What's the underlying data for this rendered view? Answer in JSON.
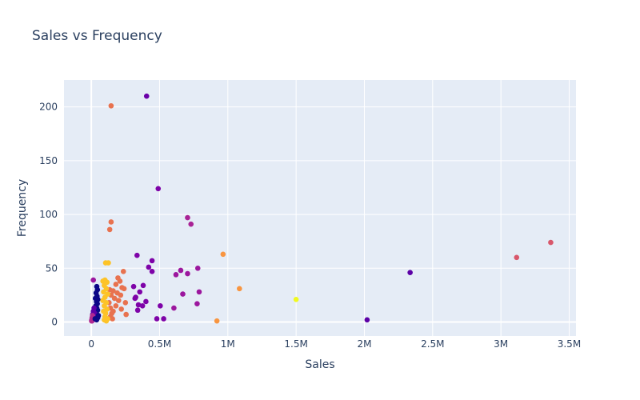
{
  "chart_data": {
    "type": "scatter",
    "title": "Sales vs Frequency",
    "xlabel": "Sales",
    "ylabel": "Frequency",
    "xlim": [
      -200000,
      3550000
    ],
    "ylim": [
      -13,
      225
    ],
    "x_ticks": [
      {
        "value": 0,
        "label": "0"
      },
      {
        "value": 500000,
        "label": "0.5M"
      },
      {
        "value": 1000000,
        "label": "1M"
      },
      {
        "value": 1500000,
        "label": "1.5M"
      },
      {
        "value": 2000000,
        "label": "2M"
      },
      {
        "value": 2500000,
        "label": "2.5M"
      },
      {
        "value": 3000000,
        "label": "3M"
      },
      {
        "value": 3500000,
        "label": "3.5M"
      }
    ],
    "y_ticks": [
      {
        "value": 0,
        "label": "0"
      },
      {
        "value": 50,
        "label": "50"
      },
      {
        "value": 100,
        "label": "100"
      },
      {
        "value": 150,
        "label": "150"
      },
      {
        "value": 200,
        "label": "200"
      }
    ],
    "grid": true,
    "legend": "none",
    "colors": {
      "plot_bg": "#e5ecf6",
      "grid": "#ffffff",
      "text": "#2a3f5f"
    },
    "points": [
      {
        "x": 145000,
        "y": 201,
        "color": "#e8724f"
      },
      {
        "x": 405000,
        "y": 210,
        "color": "#6a00a8"
      },
      {
        "x": 490000,
        "y": 124,
        "color": "#7e03a8"
      },
      {
        "x": 705000,
        "y": 97,
        "color": "#a92395"
      },
      {
        "x": 730000,
        "y": 91,
        "color": "#a92395"
      },
      {
        "x": 145000,
        "y": 93,
        "color": "#e8724f"
      },
      {
        "x": 135000,
        "y": 86,
        "color": "#e8724f"
      },
      {
        "x": 335000,
        "y": 62,
        "color": "#7e03a8"
      },
      {
        "x": 445000,
        "y": 57,
        "color": "#7e03a8"
      },
      {
        "x": 420000,
        "y": 51,
        "color": "#7e03a8"
      },
      {
        "x": 445000,
        "y": 47,
        "color": "#7e03a8"
      },
      {
        "x": 655000,
        "y": 48,
        "color": "#9c179e"
      },
      {
        "x": 620000,
        "y": 44,
        "color": "#9c179e"
      },
      {
        "x": 705000,
        "y": 45,
        "color": "#9c179e"
      },
      {
        "x": 780000,
        "y": 50,
        "color": "#9c179e"
      },
      {
        "x": 965000,
        "y": 63,
        "color": "#f89540"
      },
      {
        "x": 1085000,
        "y": 31,
        "color": "#f89540"
      },
      {
        "x": 1500000,
        "y": 21,
        "color": "#f0f921"
      },
      {
        "x": 920000,
        "y": 1,
        "color": "#f89540"
      },
      {
        "x": 2020000,
        "y": 2,
        "color": "#5c01a6"
      },
      {
        "x": 2335000,
        "y": 46,
        "color": "#5c01a6"
      },
      {
        "x": 3115000,
        "y": 60,
        "color": "#d8576b"
      },
      {
        "x": 3365000,
        "y": 74,
        "color": "#d8576b"
      },
      {
        "x": 310000,
        "y": 33,
        "color": "#7e03a8"
      },
      {
        "x": 380000,
        "y": 34,
        "color": "#7e03a8"
      },
      {
        "x": 355000,
        "y": 28,
        "color": "#7e03a8"
      },
      {
        "x": 320000,
        "y": 22,
        "color": "#7e03a8"
      },
      {
        "x": 325000,
        "y": 23,
        "color": "#7e03a8"
      },
      {
        "x": 400000,
        "y": 19,
        "color": "#7e03a8"
      },
      {
        "x": 345000,
        "y": 16,
        "color": "#7e03a8"
      },
      {
        "x": 375000,
        "y": 15,
        "color": "#7e03a8"
      },
      {
        "x": 340000,
        "y": 11,
        "color": "#7e03a8"
      },
      {
        "x": 505000,
        "y": 15,
        "color": "#7e03a8"
      },
      {
        "x": 480000,
        "y": 3,
        "color": "#7e03a8"
      },
      {
        "x": 530000,
        "y": 3,
        "color": "#7e03a8"
      },
      {
        "x": 605000,
        "y": 13,
        "color": "#9c179e"
      },
      {
        "x": 670000,
        "y": 26,
        "color": "#9c179e"
      },
      {
        "x": 790000,
        "y": 28,
        "color": "#9c179e"
      },
      {
        "x": 775000,
        "y": 17,
        "color": "#9c179e"
      },
      {
        "x": 105000,
        "y": 55,
        "color": "#fdc328"
      },
      {
        "x": 125000,
        "y": 55,
        "color": "#fdc328"
      },
      {
        "x": 235000,
        "y": 47,
        "color": "#e8724f"
      },
      {
        "x": 195000,
        "y": 41,
        "color": "#e8724f"
      },
      {
        "x": 210000,
        "y": 38,
        "color": "#e8724f"
      },
      {
        "x": 180000,
        "y": 35,
        "color": "#e8724f"
      },
      {
        "x": 225000,
        "y": 32,
        "color": "#e8724f"
      },
      {
        "x": 240000,
        "y": 31,
        "color": "#e8724f"
      },
      {
        "x": 160000,
        "y": 29,
        "color": "#e8724f"
      },
      {
        "x": 190000,
        "y": 27,
        "color": "#e8724f"
      },
      {
        "x": 215000,
        "y": 25,
        "color": "#e8724f"
      },
      {
        "x": 170000,
        "y": 22,
        "color": "#e8724f"
      },
      {
        "x": 200000,
        "y": 20,
        "color": "#e8724f"
      },
      {
        "x": 250000,
        "y": 18,
        "color": "#e8724f"
      },
      {
        "x": 180000,
        "y": 15,
        "color": "#e8724f"
      },
      {
        "x": 220000,
        "y": 12,
        "color": "#e8724f"
      },
      {
        "x": 160000,
        "y": 10,
        "color": "#e8724f"
      },
      {
        "x": 150000,
        "y": 8,
        "color": "#e8724f"
      },
      {
        "x": 255000,
        "y": 7,
        "color": "#e8724f"
      },
      {
        "x": 140000,
        "y": 5,
        "color": "#e8724f"
      },
      {
        "x": 155000,
        "y": 3,
        "color": "#e8724f"
      },
      {
        "x": 135000,
        "y": 30,
        "color": "#e8724f"
      },
      {
        "x": 145000,
        "y": 25,
        "color": "#e8724f"
      },
      {
        "x": 130000,
        "y": 18,
        "color": "#e8724f"
      },
      {
        "x": 140000,
        "y": 13,
        "color": "#e8724f"
      },
      {
        "x": 85000,
        "y": 38,
        "color": "#fdc328"
      },
      {
        "x": 100000,
        "y": 39,
        "color": "#fdc328"
      },
      {
        "x": 115000,
        "y": 37,
        "color": "#fdc328"
      },
      {
        "x": 95000,
        "y": 34,
        "color": "#fdc328"
      },
      {
        "x": 110000,
        "y": 31,
        "color": "#fdc328"
      },
      {
        "x": 90000,
        "y": 28,
        "color": "#fdc328"
      },
      {
        "x": 120000,
        "y": 26,
        "color": "#fdc328"
      },
      {
        "x": 100000,
        "y": 23,
        "color": "#fdc328"
      },
      {
        "x": 85000,
        "y": 20,
        "color": "#fdc328"
      },
      {
        "x": 110000,
        "y": 18,
        "color": "#fdc328"
      },
      {
        "x": 95000,
        "y": 15,
        "color": "#fdc328"
      },
      {
        "x": 115000,
        "y": 12,
        "color": "#fdc328"
      },
      {
        "x": 90000,
        "y": 10,
        "color": "#fdc328"
      },
      {
        "x": 105000,
        "y": 8,
        "color": "#fdc328"
      },
      {
        "x": 100000,
        "y": 5,
        "color": "#fdc328"
      },
      {
        "x": 120000,
        "y": 3,
        "color": "#fdc328"
      },
      {
        "x": 95000,
        "y": 2,
        "color": "#fdc328"
      },
      {
        "x": 110000,
        "y": 1,
        "color": "#fdc328"
      },
      {
        "x": 40000,
        "y": 33,
        "color": "#0d0887"
      },
      {
        "x": 45000,
        "y": 30,
        "color": "#0d0887"
      },
      {
        "x": 35000,
        "y": 27,
        "color": "#0d0887"
      },
      {
        "x": 42000,
        "y": 24,
        "color": "#0d0887"
      },
      {
        "x": 30000,
        "y": 22,
        "color": "#0d0887"
      },
      {
        "x": 48000,
        "y": 21,
        "color": "#0d0887"
      },
      {
        "x": 38000,
        "y": 19,
        "color": "#0d0887"
      },
      {
        "x": 44000,
        "y": 17,
        "color": "#0d0887"
      },
      {
        "x": 33000,
        "y": 15,
        "color": "#0d0887"
      },
      {
        "x": 40000,
        "y": 13,
        "color": "#0d0887"
      },
      {
        "x": 46000,
        "y": 11,
        "color": "#0d0887"
      },
      {
        "x": 36000,
        "y": 9,
        "color": "#0d0887"
      },
      {
        "x": 41000,
        "y": 7,
        "color": "#0d0887"
      },
      {
        "x": 30000,
        "y": 5,
        "color": "#0d0887"
      },
      {
        "x": 47000,
        "y": 4,
        "color": "#0d0887"
      },
      {
        "x": 39000,
        "y": 2,
        "color": "#0d0887"
      },
      {
        "x": 20000,
        "y": 13,
        "color": "#5c01a6"
      },
      {
        "x": 15000,
        "y": 10,
        "color": "#5c01a6"
      },
      {
        "x": 25000,
        "y": 8,
        "color": "#5c01a6"
      },
      {
        "x": 10000,
        "y": 7,
        "color": "#5c01a6"
      },
      {
        "x": 22000,
        "y": 5,
        "color": "#5c01a6"
      },
      {
        "x": 18000,
        "y": 4,
        "color": "#5c01a6"
      },
      {
        "x": 8000,
        "y": 3,
        "color": "#9c179e"
      },
      {
        "x": 12000,
        "y": 2,
        "color": "#9c179e"
      },
      {
        "x": 5000,
        "y": 1,
        "color": "#9c179e"
      },
      {
        "x": 15000,
        "y": 39,
        "color": "#9c179e"
      },
      {
        "x": 3000,
        "y": 2,
        "color": "#b12a90"
      },
      {
        "x": 6000,
        "y": 4,
        "color": "#b12a90"
      },
      {
        "x": 9000,
        "y": 6,
        "color": "#b12a90"
      },
      {
        "x": 2000,
        "y": 1,
        "color": "#b12a90"
      },
      {
        "x": 28000,
        "y": 3,
        "color": "#0d0887"
      },
      {
        "x": 52000,
        "y": 6,
        "color": "#0d0887"
      }
    ]
  }
}
